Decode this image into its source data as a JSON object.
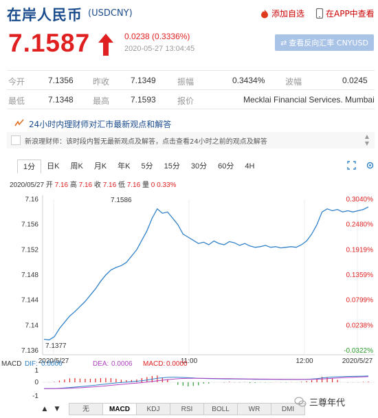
{
  "header": {
    "title": "在岸人民币",
    "code": "(USDCNY)",
    "add_watch": "添加自选",
    "app_view": "在APP中查看"
  },
  "quote": {
    "price": "7.1587",
    "change": "0.0238 (0.3336%)",
    "timestamp": "2020-05-27 13:04:45",
    "reverse_button": "查看反向汇率 CNYUSD"
  },
  "stats": {
    "row1": [
      {
        "label": "今开",
        "value": "7.1356"
      },
      {
        "label": "昨收",
        "value": "7.1349"
      },
      {
        "label": "振幅",
        "value": "0.3434%"
      },
      {
        "label": "波幅",
        "value": "0.0245"
      }
    ],
    "row2": [
      {
        "label": "最低",
        "value": "7.1348"
      },
      {
        "label": "最高",
        "value": "7.1593"
      },
      {
        "label": "报价",
        "value": "Mecklai Financial Services. Mumbai"
      }
    ]
  },
  "opinion": {
    "heading": "24小时内理财师对汇市最新观点和解答",
    "text": "新浪理财师：该时段内暂无最新观点及解答，点击查看24小时之前的观点及解答"
  },
  "tabs": [
    "1分",
    "日K",
    "周K",
    "月K",
    "年K",
    "5分",
    "15分",
    "30分",
    "60分",
    "4H"
  ],
  "info": {
    "date": "2020/05/27",
    "open_label": "开",
    "open": "7.16",
    "high_label": "高",
    "high": "7.16",
    "close_label": "收",
    "close": "7.16",
    "low_label": "低",
    "low": "7.16",
    "vol_label": "量",
    "vol": "0",
    "pct": "0.33%"
  },
  "colors": {
    "up": "#e02020",
    "down": "#2a9a2a",
    "line": "#2f80c8",
    "title": "#1a4b8c"
  },
  "chart_data": {
    "type": "line",
    "ylim": [
      7.136,
      7.16
    ],
    "yticks": [
      "7.16",
      "7.156",
      "7.152",
      "7.148",
      "7.144",
      "7.14",
      "7.136"
    ],
    "pct_ticks": [
      "0.3040%",
      "0.2480%",
      "0.1919%",
      "0.1359%",
      "0.0799%",
      "0.0238%",
      "-0.0322%"
    ],
    "xticks": [
      "2020/5/27",
      "11:00",
      "12:00",
      "2020/5/27"
    ],
    "annotations": {
      "high": "7.1586",
      "low": "7.1377"
    },
    "series": [
      {
        "values": [
          7.1378,
          7.1377,
          7.1382,
          7.1395,
          7.1405,
          7.1415,
          7.1422,
          7.143,
          7.1438,
          7.1448,
          7.1458,
          7.147,
          7.148,
          7.1488,
          7.1492,
          7.1495,
          7.15,
          7.151,
          7.152,
          7.1535,
          7.155,
          7.157,
          7.1585,
          7.1578,
          7.158,
          7.157,
          7.156,
          7.1545,
          7.154,
          7.1535,
          7.153,
          7.1532,
          7.1528,
          7.1534,
          7.153,
          7.1528,
          7.1533,
          7.1531,
          7.1527,
          7.153,
          7.1526,
          7.1524,
          7.1525,
          7.1527,
          7.1524,
          7.1525,
          7.1523,
          7.1524,
          7.1525,
          7.1524,
          7.1528,
          7.1534,
          7.1545,
          7.156,
          7.158,
          7.1585,
          7.1582,
          7.1584,
          7.158,
          7.1582,
          7.158,
          7.1582,
          7.1584,
          7.1588
        ]
      }
    ],
    "macd": {
      "dif_label": "DIF:",
      "dif": "0.0006",
      "dea_label": "DEA:",
      "dea": "0.0006",
      "macd_label": "MACD:",
      "macd": "0.0000",
      "title": "MACD",
      "yticks": [
        "1",
        "0",
        "-1"
      ]
    }
  },
  "indicator_tabs": [
    "无",
    "MACD",
    "KDJ",
    "RSI",
    "BOLL",
    "WR",
    "DMI"
  ],
  "watermark": "三尊年代"
}
